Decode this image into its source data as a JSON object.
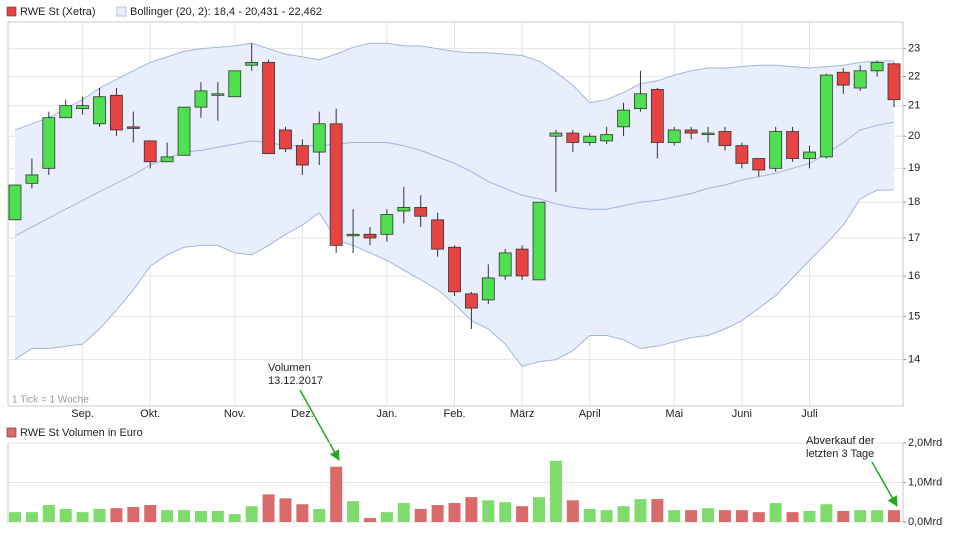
{
  "chart_data": [
    {
      "type": "candlestick",
      "title": "RWE St (Xetra)",
      "note": "1 Tick = 1 Woche",
      "up_color": "#4fe04f",
      "down_color": "#e84343",
      "categories": [
        null,
        null,
        null,
        null,
        "Sep.",
        null,
        null,
        null,
        "Okt.",
        null,
        null,
        null,
        null,
        "Nov.",
        null,
        null,
        null,
        "Dez.",
        null,
        null,
        null,
        null,
        "Jan.",
        null,
        null,
        null,
        "Feb.",
        null,
        null,
        null,
        "März",
        null,
        null,
        null,
        "April",
        null,
        null,
        null,
        null,
        "Mai",
        null,
        null,
        null,
        "Juni",
        null,
        null,
        null,
        "Juli",
        null,
        null,
        null,
        null,
        null
      ],
      "open": [
        17.5,
        18.55,
        19.0,
        20.6,
        20.9,
        20.4,
        21.35,
        20.3,
        19.85,
        19.2,
        19.4,
        20.95,
        21.35,
        21.3,
        22.4,
        22.5,
        20.2,
        19.7,
        19.5,
        20.4,
        17.1,
        17.1,
        17.1,
        17.75,
        17.85,
        17.5,
        16.75,
        15.55,
        15.4,
        16.0,
        16.7,
        15.9,
        20.0,
        20.1,
        19.8,
        19.85,
        20.3,
        20.9,
        21.55,
        19.8,
        20.2,
        20.05,
        20.15,
        19.7,
        19.3,
        19.0,
        20.15,
        19.3,
        19.35,
        22.15,
        21.6,
        22.2,
        22.45
      ],
      "high": [
        18.5,
        19.3,
        20.8,
        21.2,
        21.3,
        21.6,
        21.6,
        20.8,
        19.85,
        19.8,
        20.95,
        21.8,
        21.8,
        22.2,
        23.2,
        22.6,
        20.3,
        19.9,
        20.8,
        20.9,
        17.8,
        17.3,
        17.8,
        18.45,
        18.2,
        17.7,
        16.8,
        15.6,
        16.3,
        16.7,
        16.8,
        18.0,
        20.2,
        20.2,
        20.1,
        20.3,
        21.1,
        22.2,
        21.6,
        20.3,
        20.3,
        20.3,
        20.3,
        19.8,
        19.3,
        20.3,
        20.3,
        19.7,
        22.1,
        22.3,
        22.4,
        22.55,
        22.5
      ],
      "low": [
        17.5,
        18.4,
        18.8,
        20.6,
        20.7,
        20.3,
        20.0,
        19.8,
        19.0,
        19.2,
        19.4,
        20.6,
        20.5,
        21.3,
        22.2,
        19.45,
        19.5,
        18.8,
        19.1,
        16.6,
        16.6,
        16.8,
        16.9,
        17.4,
        17.3,
        16.5,
        15.5,
        14.7,
        15.3,
        15.9,
        15.9,
        15.9,
        18.3,
        19.5,
        19.7,
        19.75,
        20.0,
        20.8,
        19.3,
        19.7,
        19.9,
        19.8,
        19.55,
        19.0,
        18.75,
        18.9,
        19.2,
        19.0,
        19.3,
        21.4,
        21.5,
        22.0,
        20.95
      ],
      "close": [
        18.5,
        18.8,
        20.6,
        21.0,
        21.0,
        21.3,
        20.2,
        20.25,
        19.2,
        19.35,
        20.95,
        21.5,
        21.4,
        22.2,
        22.5,
        19.45,
        19.6,
        19.1,
        20.4,
        16.8,
        17.1,
        17.0,
        17.65,
        17.85,
        17.6,
        16.7,
        15.6,
        15.2,
        15.95,
        16.6,
        16.0,
        18.0,
        20.1,
        19.8,
        20.0,
        20.05,
        20.85,
        21.4,
        19.8,
        20.2,
        20.1,
        20.1,
        19.7,
        19.15,
        18.95,
        20.15,
        19.3,
        19.5,
        22.05,
        21.7,
        22.2,
        22.5,
        21.2
      ],
      "bollinger": {
        "name": "Bollinger (20, 2): 18,4 - 20,431 - 22,462",
        "color": "#a3b6dc",
        "fill": "#e8eefb",
        "upper": [
          20.2,
          20.4,
          20.6,
          20.9,
          21.2,
          21.6,
          21.9,
          22.2,
          22.5,
          22.7,
          22.9,
          23.0,
          23.05,
          23.1,
          23.2,
          23.0,
          22.8,
          22.7,
          22.6,
          22.8,
          23.05,
          23.2,
          23.2,
          23.1,
          23.1,
          23.0,
          22.9,
          22.85,
          22.85,
          22.8,
          22.75,
          22.55,
          22.15,
          21.7,
          21.1,
          21.2,
          21.45,
          21.75,
          21.85,
          22.05,
          22.2,
          22.3,
          22.3,
          22.35,
          22.4,
          22.4,
          22.35,
          22.3,
          22.35,
          22.4,
          22.5,
          22.55,
          22.55
        ],
        "middle": [
          17.05,
          17.3,
          17.55,
          17.8,
          18.05,
          18.3,
          18.55,
          18.8,
          19.1,
          19.3,
          19.5,
          19.55,
          19.65,
          19.75,
          19.85,
          19.8,
          19.7,
          19.7,
          19.7,
          19.75,
          19.8,
          19.8,
          19.8,
          19.7,
          19.55,
          19.35,
          19.15,
          18.9,
          18.6,
          18.4,
          18.2,
          18.1,
          17.95,
          17.85,
          17.8,
          17.8,
          17.9,
          18.0,
          18.05,
          18.15,
          18.25,
          18.4,
          18.5,
          18.65,
          18.75,
          18.85,
          19.0,
          19.15,
          19.45,
          19.8,
          20.2,
          20.35,
          20.45
        ],
        "lower": [
          14.0,
          14.25,
          14.25,
          14.3,
          14.35,
          14.7,
          15.15,
          15.65,
          16.25,
          16.55,
          16.75,
          16.8,
          16.8,
          16.6,
          16.55,
          16.8,
          17.1,
          17.35,
          17.7,
          16.95,
          16.8,
          16.6,
          16.4,
          16.15,
          15.9,
          15.65,
          15.3,
          14.9,
          14.7,
          14.35,
          13.85,
          13.95,
          14.0,
          14.2,
          14.55,
          14.55,
          14.45,
          14.25,
          14.3,
          14.4,
          14.5,
          14.55,
          14.7,
          14.9,
          15.2,
          15.5,
          15.95,
          16.4,
          16.85,
          17.35,
          18.1,
          18.35,
          18.35
        ]
      },
      "log_scale": true,
      "grid": true,
      "ylim": [
        13,
        24
      ],
      "yticks": [
        14,
        15,
        16,
        17,
        18,
        19,
        20,
        21,
        22,
        23
      ],
      "annotations": [
        {
          "lines": [
            "Volumen",
            "13.12.2017"
          ]
        }
      ]
    },
    {
      "type": "bar",
      "title": "RWE St Volumen in Euro",
      "up_color": "#7fdc6c",
      "down_color": "#d96a6a",
      "values": [
        0.25,
        0.25,
        0.43,
        0.33,
        0.25,
        0.33,
        0.35,
        0.38,
        0.43,
        0.3,
        0.3,
        0.28,
        0.28,
        0.2,
        0.4,
        0.7,
        0.6,
        0.45,
        0.33,
        1.4,
        0.53,
        0.1,
        0.25,
        0.48,
        0.33,
        0.43,
        0.48,
        0.63,
        0.55,
        0.5,
        0.4,
        0.63,
        1.55,
        0.55,
        0.33,
        0.3,
        0.4,
        0.58,
        0.58,
        0.3,
        0.3,
        0.35,
        0.3,
        0.3,
        0.25,
        0.48,
        0.25,
        0.28,
        0.45,
        0.28,
        0.3,
        0.3,
        0.3
      ],
      "grid": true,
      "ylim": [
        0,
        2
      ],
      "yticks": [
        {
          "value": 0,
          "label": "0,0Mrd"
        },
        {
          "value": 1,
          "label": "1,0Mrd"
        },
        {
          "value": 2,
          "label": "2,0Mrd"
        }
      ],
      "annotations": [
        {
          "lines": [
            "Abverkauf der",
            "letzten 3 Tage"
          ]
        }
      ]
    }
  ]
}
